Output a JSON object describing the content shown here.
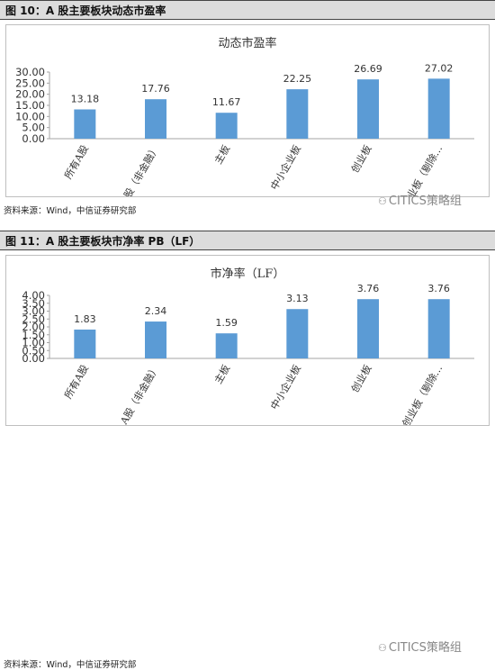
{
  "panels": [
    {
      "header": "图 10：A 股主要板块动态市盈率",
      "source": "资料来源：Wind，中信证券研究部",
      "watermark": "CITICS策略组"
    },
    {
      "header": "图 11：A 股主要板块市净率 PB（LF）",
      "source": "资料来源：Wind，中信证券研究部",
      "watermark": "CITICS策略组"
    }
  ],
  "chart_data": [
    {
      "type": "bar",
      "title": "动态市盈率",
      "categories": [
        "所有A股",
        "A股（非金融）",
        "主板",
        "中小企业板",
        "创业板",
        "创业板（剔除…"
      ],
      "values": [
        13.18,
        17.76,
        11.67,
        22.25,
        26.69,
        27.02
      ],
      "value_labels": [
        "13.18",
        "17.76",
        "11.67",
        "22.25",
        "26.69",
        "27.02"
      ],
      "yticks": [
        "0.00",
        "5.00",
        "10.00",
        "15.00",
        "20.00",
        "25.00",
        "30.00"
      ],
      "ylim": [
        0,
        30
      ],
      "grid": false,
      "bar_color": "#5b9bd5"
    },
    {
      "type": "bar",
      "title": "市净率（LF）",
      "categories": [
        "所有A股",
        "A股（非金融）",
        "主板",
        "中小企业板",
        "创业板",
        "创业板（剔除…"
      ],
      "values": [
        1.83,
        2.34,
        1.59,
        3.13,
        3.76,
        3.76
      ],
      "value_labels": [
        "1.83",
        "2.34",
        "1.59",
        "3.13",
        "3.76",
        "3.76"
      ],
      "yticks": [
        "0.00",
        "0.50",
        "1.00",
        "1.50",
        "2.00",
        "2.50",
        "3.00",
        "3.50",
        "4.00"
      ],
      "ylim": [
        0,
        4
      ],
      "grid": false,
      "bar_color": "#5b9bd5"
    }
  ]
}
